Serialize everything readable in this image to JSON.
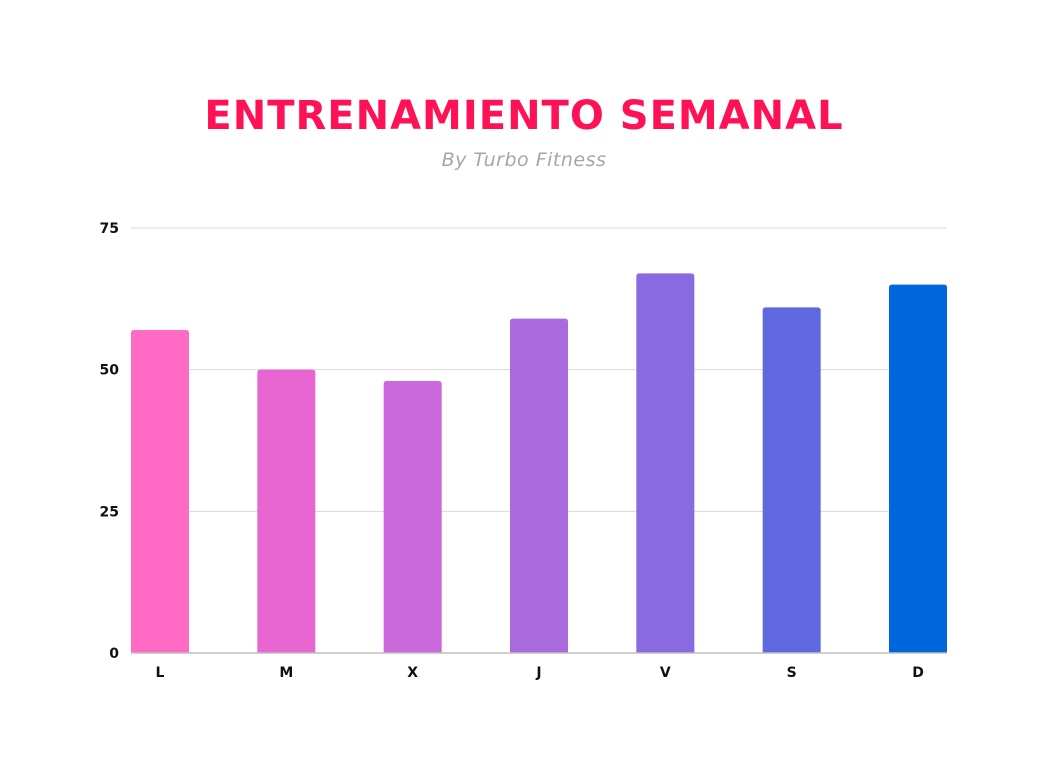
{
  "colors": {
    "title": "#ff1155",
    "subtitle": "#a6a6a6",
    "grid": "#d9d9d9",
    "axis": "#bfbfbf",
    "bars": [
      "#ff6bc4",
      "#e866d1",
      "#cb68db",
      "#ab69de",
      "#8a6ae0",
      "#6068e0",
      "#0066dd"
    ]
  },
  "chart_data": {
    "type": "bar",
    "title": "ENTRENAMIENTO SEMANAL",
    "subtitle": "By Turbo Fitness",
    "categories": [
      "L",
      "M",
      "X",
      "J",
      "V",
      "S",
      "D"
    ],
    "values": [
      57,
      50,
      48,
      59,
      67,
      61,
      65
    ],
    "xlabel": "",
    "ylabel": "",
    "ylim": [
      0,
      75
    ],
    "yticks": [
      0,
      25,
      50,
      75
    ],
    "ytick_labels": [
      "0",
      "25",
      "50",
      "75"
    ],
    "grid": true,
    "legend": "none"
  }
}
